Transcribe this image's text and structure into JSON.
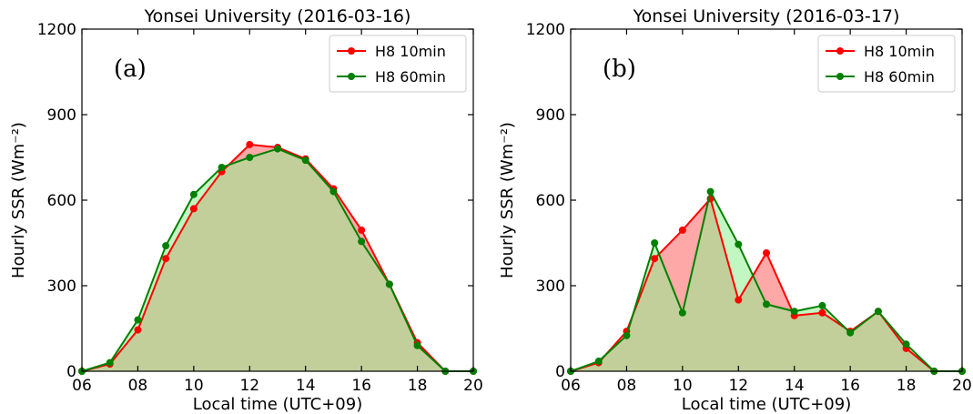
{
  "chart_data": [
    {
      "type": "area",
      "title": "Yonsei University (2016-03-16)",
      "panel_label": "(a)",
      "xlabel": "Local time (UTC+09)",
      "ylabel": "Hourly SSR (Wm⁻²)",
      "xlim": [
        6,
        20
      ],
      "ylim": [
        0,
        1200
      ],
      "x_ticks": [
        6,
        8,
        10,
        12,
        14,
        16,
        18,
        20
      ],
      "x_tick_labels": [
        "06",
        "08",
        "10",
        "12",
        "14",
        "16",
        "18",
        "20"
      ],
      "y_ticks": [
        0,
        300,
        600,
        900,
        1200
      ],
      "y_tick_labels": [
        "0",
        "300",
        "600",
        "900",
        "1200"
      ],
      "legend_position": "top-right",
      "grid": false,
      "series": [
        {
          "name": "H8 10min",
          "color": "#ff0000",
          "fill": "#ff9999",
          "x": [
            6,
            7,
            8,
            9,
            10,
            11,
            12,
            13,
            14,
            15,
            16,
            17,
            18,
            19,
            20
          ],
          "values": [
            0,
            25,
            145,
            395,
            570,
            700,
            795,
            785,
            745,
            640,
            495,
            305,
            100,
            0,
            0
          ]
        },
        {
          "name": "H8 60min",
          "color": "#008000",
          "fill": "#90ee90",
          "x": [
            6,
            7,
            8,
            9,
            10,
            11,
            12,
            13,
            14,
            15,
            16,
            17,
            18,
            19,
            20
          ],
          "values": [
            0,
            30,
            180,
            440,
            620,
            715,
            750,
            780,
            740,
            630,
            455,
            305,
            90,
            0,
            0
          ]
        }
      ]
    },
    {
      "type": "area",
      "title": "Yonsei University (2016-03-17)",
      "panel_label": "(b)",
      "xlabel": "Local time (UTC+09)",
      "ylabel": "Hourly SSR (Wm⁻²)",
      "xlim": [
        6,
        20
      ],
      "ylim": [
        0,
        1200
      ],
      "x_ticks": [
        6,
        8,
        10,
        12,
        14,
        16,
        18,
        20
      ],
      "x_tick_labels": [
        "06",
        "08",
        "10",
        "12",
        "14",
        "16",
        "18",
        "20"
      ],
      "y_ticks": [
        0,
        300,
        600,
        900,
        1200
      ],
      "y_tick_labels": [
        "0",
        "300",
        "600",
        "900",
        "1200"
      ],
      "legend_position": "top-right",
      "grid": false,
      "series": [
        {
          "name": "H8 10min",
          "color": "#ff0000",
          "fill": "#ff9999",
          "x": [
            6,
            7,
            8,
            9,
            10,
            11,
            12,
            13,
            14,
            15,
            16,
            17,
            18,
            19,
            20
          ],
          "values": [
            0,
            30,
            140,
            395,
            495,
            605,
            250,
            415,
            195,
            205,
            140,
            210,
            80,
            0,
            0
          ]
        },
        {
          "name": "H8 60min",
          "color": "#008000",
          "fill": "#90ee90",
          "x": [
            6,
            7,
            8,
            9,
            10,
            11,
            12,
            13,
            14,
            15,
            16,
            17,
            18,
            19,
            20
          ],
          "values": [
            0,
            35,
            125,
            450,
            205,
            630,
            445,
            235,
            210,
            230,
            135,
            210,
            95,
            0,
            0
          ]
        }
      ]
    }
  ]
}
